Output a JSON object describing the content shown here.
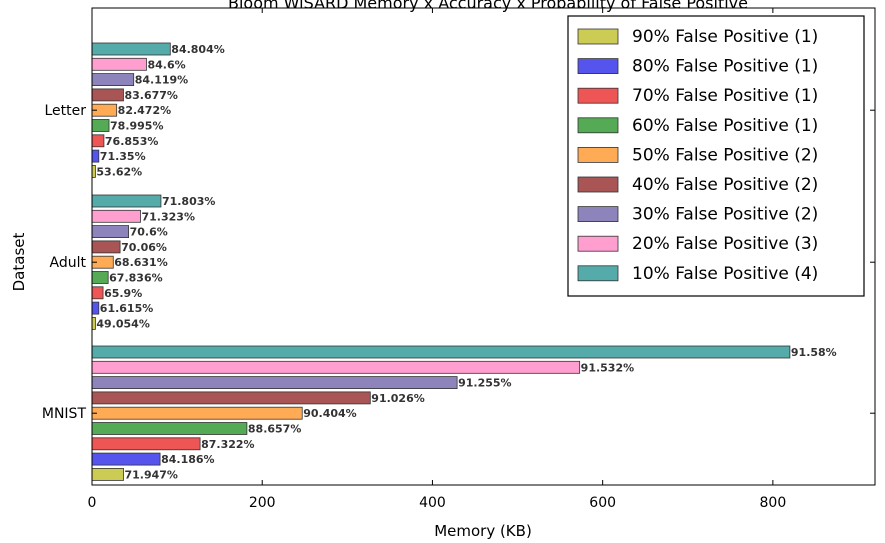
{
  "chart_data": {
    "type": "bar",
    "orientation": "horizontal",
    "title": "Bloom WiSARD Memory x Accuracy x Probability of False Positive",
    "xlabel": "Memory (KB)",
    "ylabel": "Dataset",
    "xlim": [
      0,
      920
    ],
    "xticks": [
      0,
      200,
      400,
      600,
      800
    ],
    "grid": false,
    "legend_position": "top-right",
    "categories": [
      "Letter",
      "Adult",
      "MNIST"
    ],
    "series": [
      {
        "name": "90% False Positive (1)",
        "color": "#cccc55",
        "values": [
          4,
          4,
          37
        ],
        "labels": [
          "53.62%",
          "49.054%",
          "71.947%"
        ]
      },
      {
        "name": "80% False Positive (1)",
        "color": "#5555ee",
        "values": [
          8,
          8,
          80
        ],
        "labels": [
          "71.35%",
          "61.615%",
          "84.186%"
        ]
      },
      {
        "name": "70% False Positive (1)",
        "color": "#ee5555",
        "values": [
          14,
          13,
          127
        ],
        "labels": [
          "76.853%",
          "65.9%",
          "87.322%"
        ]
      },
      {
        "name": "60% False Positive (1)",
        "color": "#55aa55",
        "values": [
          20,
          19,
          182
        ],
        "labels": [
          "78.995%",
          "67.836%",
          "88.657%"
        ]
      },
      {
        "name": "50% False Positive (2)",
        "color": "#ffaa55",
        "values": [
          29,
          25,
          247
        ],
        "labels": [
          "82.472%",
          "68.631%",
          "90.404%"
        ]
      },
      {
        "name": "40% False Positive (2)",
        "color": "#aa5555",
        "values": [
          37,
          33,
          327
        ],
        "labels": [
          "83.677%",
          "70.06%",
          "91.026%"
        ]
      },
      {
        "name": "30% False Positive (2)",
        "color": "#8c84bb",
        "values": [
          49,
          43,
          429
        ],
        "labels": [
          "84.119%",
          "70.6%",
          "91.255%"
        ]
      },
      {
        "name": "20% False Positive (3)",
        "color": "#ff9fcf",
        "values": [
          64,
          57,
          573
        ],
        "labels": [
          "84.6%",
          "71.323%",
          "91.532%"
        ]
      },
      {
        "name": "10% False Positive (4)",
        "color": "#55aaaa",
        "values": [
          92,
          81,
          820
        ],
        "labels": [
          "84.804%",
          "71.803%",
          "91.58%"
        ]
      }
    ]
  }
}
